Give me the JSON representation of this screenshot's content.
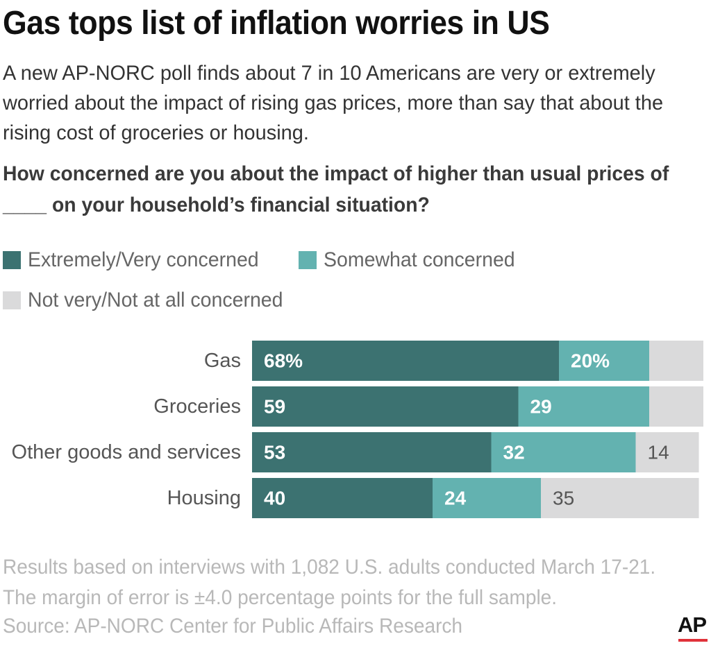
{
  "title": "Gas tops list of inflation worries in US",
  "subtitle": "A new AP-NORC poll finds about 7 in 10 Americans are very or extremely worried about the impact of rising gas prices, more than say that about the rising cost of groceries or housing.",
  "question": "How concerned are you about the impact of higher than usual prices of ____ on your household’s financial situation?",
  "legend": [
    {
      "label": "Extremely/Very concerned",
      "color": "#3c7271"
    },
    {
      "label": "Somewhat concerned",
      "color": "#63b2b0"
    },
    {
      "label": "Not very/Not at all concerned",
      "color": "#dadadb"
    }
  ],
  "chart_data": {
    "type": "bar",
    "orientation": "horizontal",
    "stacked": true,
    "categories": [
      "Gas",
      "Groceries",
      "Other goods and services",
      "Housing"
    ],
    "series": [
      {
        "name": "Extremely/Very concerned",
        "values": [
          68,
          59,
          53,
          40
        ],
        "labels": [
          "68%",
          "59",
          "53",
          "40"
        ],
        "color": "#3c7271"
      },
      {
        "name": "Somewhat concerned",
        "values": [
          20,
          29,
          32,
          24
        ],
        "labels": [
          "20%",
          "29",
          "32",
          "24"
        ],
        "color": "#63b2b0"
      },
      {
        "name": "Not very/Not at all concerned",
        "values": [
          12,
          12,
          14,
          35
        ],
        "labels": [
          "",
          "",
          "14",
          "35"
        ],
        "color": "#dadadb"
      }
    ],
    "xlim": [
      0,
      100
    ],
    "grid": false
  },
  "notes": "Results based on interviews with 1,082 U.S. adults conducted March 17-21. The margin of error is ±4.0 percentage points for the full sample.",
  "source": "Source: AP-NORC Center for Public Affairs Research",
  "logo": {
    "text": "AP",
    "accent_color": "#e0323a"
  }
}
